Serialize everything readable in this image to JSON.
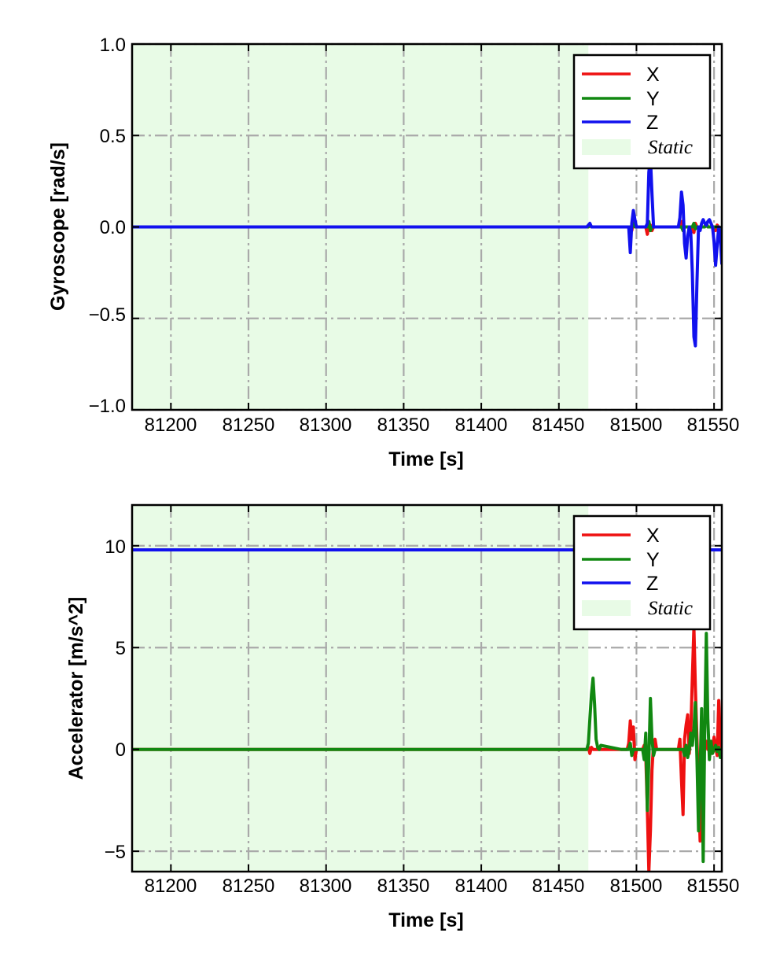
{
  "chart_data": [
    {
      "type": "line",
      "xlabel": "Time [s]",
      "ylabel": "Gyroscope [rad/s]",
      "xlim": [
        81175,
        81555
      ],
      "ylim": [
        -1.0,
        1.0
      ],
      "xticks": [
        81200,
        81250,
        81300,
        81350,
        81400,
        81450,
        81500,
        81550
      ],
      "yticks": [
        -1.0,
        -0.5,
        0.0,
        0.5,
        1.0
      ],
      "ytick_labels": [
        "−1.0",
        "−0.5",
        "0.0",
        "0.5",
        "1.0"
      ],
      "grid": true,
      "legend_position": "top-right",
      "static_region": [
        81175,
        81469
      ],
      "legend": [
        {
          "label": "X",
          "color": "#ee1111",
          "kind": "line"
        },
        {
          "label": "Y",
          "color": "#118811",
          "kind": "line"
        },
        {
          "label": "Z",
          "color": "#1111ee",
          "kind": "line"
        },
        {
          "label": "Static",
          "color": "#e8fbe6",
          "kind": "patch"
        }
      ],
      "series": [
        {
          "name": "X",
          "color": "#ee1111",
          "x": [
            81175,
            81469,
            81470,
            81471,
            81496,
            81497,
            81498,
            81499,
            81506,
            81507,
            81508,
            81509,
            81510,
            81511,
            81512,
            81528,
            81529,
            81530,
            81531,
            81532,
            81536,
            81537,
            81538,
            81539,
            81540,
            81544,
            81545,
            81546,
            81550,
            81551,
            81552,
            81553,
            81554,
            81555
          ],
          "y": [
            0,
            0,
            0.015,
            0,
            0,
            -0.02,
            0.03,
            0,
            0,
            -0.04,
            0.02,
            0.01,
            -0.02,
            0,
            0,
            0,
            0.03,
            -0.02,
            0,
            0,
            0,
            -0.03,
            0.02,
            0,
            0,
            0,
            0.02,
            0,
            0,
            -0.02,
            0.01,
            0,
            -0.02,
            0
          ]
        },
        {
          "name": "Y",
          "color": "#118811",
          "x": [
            81175,
            81469,
            81470,
            81471,
            81497,
            81498,
            81499,
            81507,
            81508,
            81509,
            81510,
            81529,
            81530,
            81531,
            81536,
            81537,
            81538,
            81539,
            81544,
            81545,
            81546,
            81553,
            81554,
            81555
          ],
          "y": [
            0,
            0,
            0.01,
            0,
            0,
            0.02,
            0,
            0,
            0.03,
            -0.02,
            0,
            0,
            -0.02,
            0,
            0,
            0.02,
            -0.01,
            0,
            0,
            0.02,
            0,
            0,
            -0.02,
            0
          ]
        },
        {
          "name": "Z",
          "color": "#1111ee",
          "x": [
            81175,
            81468,
            81469,
            81470,
            81471,
            81495,
            81496,
            81497,
            81498,
            81499,
            81500,
            81506,
            81507,
            81508,
            81509,
            81510,
            81511,
            81512,
            81527,
            81528,
            81529,
            81530,
            81531,
            81532,
            81533,
            81534,
            81535,
            81536,
            81537,
            81538,
            81539,
            81540,
            81541,
            81542,
            81543,
            81544,
            81545,
            81546,
            81547,
            81548,
            81549,
            81550,
            81551,
            81552,
            81553,
            81554,
            81555
          ],
          "y": [
            0,
            0,
            0.01,
            0.02,
            0,
            0,
            -0.14,
            0.02,
            0.09,
            0.04,
            0,
            0,
            0.02,
            0.3,
            0.38,
            0.18,
            0,
            0,
            0,
            0.05,
            0.19,
            0.12,
            -0.09,
            -0.17,
            -0.05,
            0,
            -0.03,
            -0.25,
            -0.6,
            -0.65,
            -0.3,
            0,
            -0.02,
            0.02,
            0.04,
            0.02,
            0.01,
            0.03,
            0.04,
            0.02,
            0,
            -0.08,
            -0.21,
            -0.1,
            0,
            -0.05,
            -0.2
          ]
        }
      ]
    },
    {
      "type": "line",
      "xlabel": "Time [s]",
      "ylabel": "Accelerator [m/s^2]",
      "xlim": [
        81175,
        81555
      ],
      "ylim": [
        -6,
        12
      ],
      "xticks": [
        81200,
        81250,
        81300,
        81350,
        81400,
        81450,
        81500,
        81550
      ],
      "yticks": [
        -5,
        0,
        5,
        10
      ],
      "ytick_labels": [
        "−5",
        "0",
        "5",
        "10"
      ],
      "grid": true,
      "legend_position": "top-right",
      "static_region": [
        81175,
        81469
      ],
      "legend": [
        {
          "label": "X",
          "color": "#ee1111",
          "kind": "line"
        },
        {
          "label": "Y",
          "color": "#118811",
          "kind": "line"
        },
        {
          "label": "Z",
          "color": "#1111ee",
          "kind": "line"
        },
        {
          "label": "Static",
          "color": "#e8fbe6",
          "kind": "patch"
        }
      ],
      "series": [
        {
          "name": "X",
          "color": "#ee1111",
          "x": [
            81175,
            81468,
            81469,
            81470,
            81471,
            81472,
            81473,
            81494,
            81495,
            81496,
            81497,
            81498,
            81499,
            81500,
            81504,
            81505,
            81506,
            81507,
            81508,
            81509,
            81510,
            81511,
            81512,
            81513,
            81527,
            81528,
            81529,
            81530,
            81531,
            81532,
            81533,
            81534,
            81535,
            81536,
            81537,
            81538,
            81539,
            81540,
            81541,
            81542,
            81543,
            81544,
            81545,
            81546,
            81547,
            81548,
            81549,
            81550,
            81551,
            81552,
            81553,
            81554,
            81555
          ],
          "y": [
            0,
            0,
            0.1,
            -0.2,
            0.1,
            0,
            0,
            0,
            0.3,
            1.4,
            0.5,
            1.1,
            -0.5,
            0,
            0,
            0.2,
            -0.3,
            -3.0,
            -6.0,
            -4.0,
            -1.0,
            0.3,
            0.5,
            0,
            0,
            0.5,
            -1.5,
            -3.2,
            0.5,
            1.2,
            1.7,
            -0.2,
            0.8,
            3.5,
            6.0,
            3.0,
            0.5,
            -2.0,
            -4.5,
            -3.0,
            -0.5,
            0.2,
            0.4,
            0,
            0.3,
            -0.2,
            0,
            0.6,
            0.1,
            -0.3,
            2.4,
            0.5,
            -0.3
          ]
        },
        {
          "name": "Y",
          "color": "#118811",
          "x": [
            81175,
            81468,
            81469,
            81470,
            81471,
            81472,
            81473,
            81474,
            81475,
            81476,
            81477,
            81490,
            81495,
            81496,
            81497,
            81498,
            81500,
            81504,
            81505,
            81506,
            81507,
            81508,
            81509,
            81510,
            81511,
            81512,
            81530,
            81531,
            81532,
            81533,
            81534,
            81535,
            81536,
            81537,
            81538,
            81539,
            81540,
            81541,
            81542,
            81543,
            81544,
            81545,
            81546,
            81547,
            81548,
            81549,
            81550,
            81551,
            81552,
            81553,
            81554,
            81555
          ],
          "y": [
            0,
            0,
            0.3,
            1.5,
            2.7,
            3.5,
            2.2,
            0.5,
            0.1,
            0,
            0.2,
            0,
            0,
            0.3,
            -0.3,
            0,
            0,
            0,
            -0.5,
            0.8,
            -3.0,
            -0.5,
            2.5,
            0.5,
            -0.3,
            0,
            0,
            -0.3,
            0.2,
            -0.4,
            0,
            0.8,
            0.2,
            1.0,
            2.3,
            -0.5,
            -4.0,
            -1.0,
            2.0,
            -5.5,
            1.0,
            5.7,
            1.5,
            -0.5,
            0.4,
            -0.2,
            0,
            0.2,
            -0.1,
            0.1,
            -0.4,
            0
          ]
        },
        {
          "name": "Z",
          "color": "#1111ee",
          "x": [
            81175,
            81555
          ],
          "y": [
            9.8,
            9.8
          ]
        }
      ]
    }
  ]
}
